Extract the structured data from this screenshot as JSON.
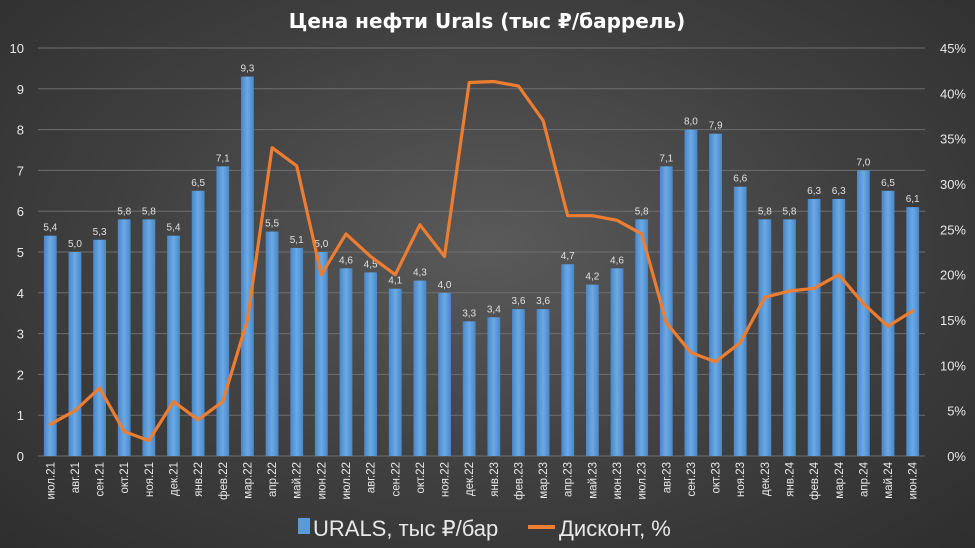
{
  "chart_data": {
    "type": "bar+line",
    "title": "Цена нефти Urals (тыс ₽/баррель)",
    "categories": [
      "июл.21",
      "авг.21",
      "сен.21",
      "окт.21",
      "ноя.21",
      "дек.21",
      "янв.22",
      "фев.22",
      "мар.22",
      "апр.22",
      "май.22",
      "июн.22",
      "июл.22",
      "авг.22",
      "сен.22",
      "окт.22",
      "ноя.22",
      "дек.22",
      "янв.23",
      "фев.23",
      "мар.23",
      "апр.23",
      "май.23",
      "июн.23",
      "июл.23",
      "авг.23",
      "сен.23",
      "окт.23",
      "ноя.23",
      "дек.23",
      "янв.24",
      "фев.24",
      "мар.24",
      "апр.24",
      "май.24",
      "июн.24"
    ],
    "series": [
      {
        "name": "URALS, тыс ₽/бар",
        "kind": "bar",
        "axis": "left",
        "color": "#5b9bd5",
        "values": [
          5.4,
          5.0,
          5.3,
          5.8,
          5.8,
          5.4,
          6.5,
          7.1,
          9.3,
          5.5,
          5.1,
          5.0,
          4.6,
          4.5,
          4.1,
          4.3,
          4.0,
          3.3,
          3.4,
          3.6,
          3.6,
          4.7,
          4.2,
          4.6,
          5.8,
          7.1,
          8.0,
          7.9,
          6.6,
          5.8,
          5.8,
          6.3,
          6.3,
          7.0,
          6.5,
          6.1
        ],
        "labels": [
          "5,4",
          "5,0",
          "5,3",
          "5,8",
          "5,8",
          "5,4",
          "6,5",
          "7,1",
          "9,3",
          "5,5",
          "5,1",
          "5,0",
          "4,6",
          "4,5",
          "4,1",
          "4,3",
          "4,0",
          "3,3",
          "3,4",
          "3,6",
          "3,6",
          "4,7",
          "4,2",
          "4,6",
          "5,8",
          "7,1",
          "8,0",
          "7,9",
          "6,6",
          "5,8",
          "5,8",
          "6,3",
          "6,3",
          "7,0",
          "6,5",
          "6,1"
        ]
      },
      {
        "name": "Дисконт, %",
        "kind": "line",
        "axis": "right",
        "color": "#ed7d31",
        "values": [
          3.5,
          5.0,
          7.5,
          2.7,
          1.7,
          6.0,
          4.0,
          6.0,
          15.0,
          34.0,
          32.0,
          20.0,
          24.5,
          22.0,
          20.0,
          25.5,
          22.0,
          41.2,
          41.3,
          40.8,
          37.0,
          26.5,
          26.5,
          26.0,
          24.5,
          14.7,
          11.4,
          10.4,
          12.5,
          17.5,
          18.2,
          18.5,
          20.0,
          16.8,
          14.3,
          16.0
        ]
      }
    ],
    "y_left": {
      "min": 0,
      "max": 10,
      "ticks": [
        "0",
        "1",
        "2",
        "3",
        "4",
        "5",
        "6",
        "7",
        "8",
        "9",
        "10"
      ]
    },
    "y_right": {
      "min": 0,
      "max": 45,
      "ticks": [
        "0%",
        "5%",
        "10%",
        "15%",
        "20%",
        "25%",
        "30%",
        "35%",
        "40%",
        "45%"
      ]
    },
    "grid": true,
    "legend": {
      "placement": "bottom",
      "items": [
        "URALS, тыс ₽/бар",
        "Дисконт, %"
      ]
    }
  }
}
